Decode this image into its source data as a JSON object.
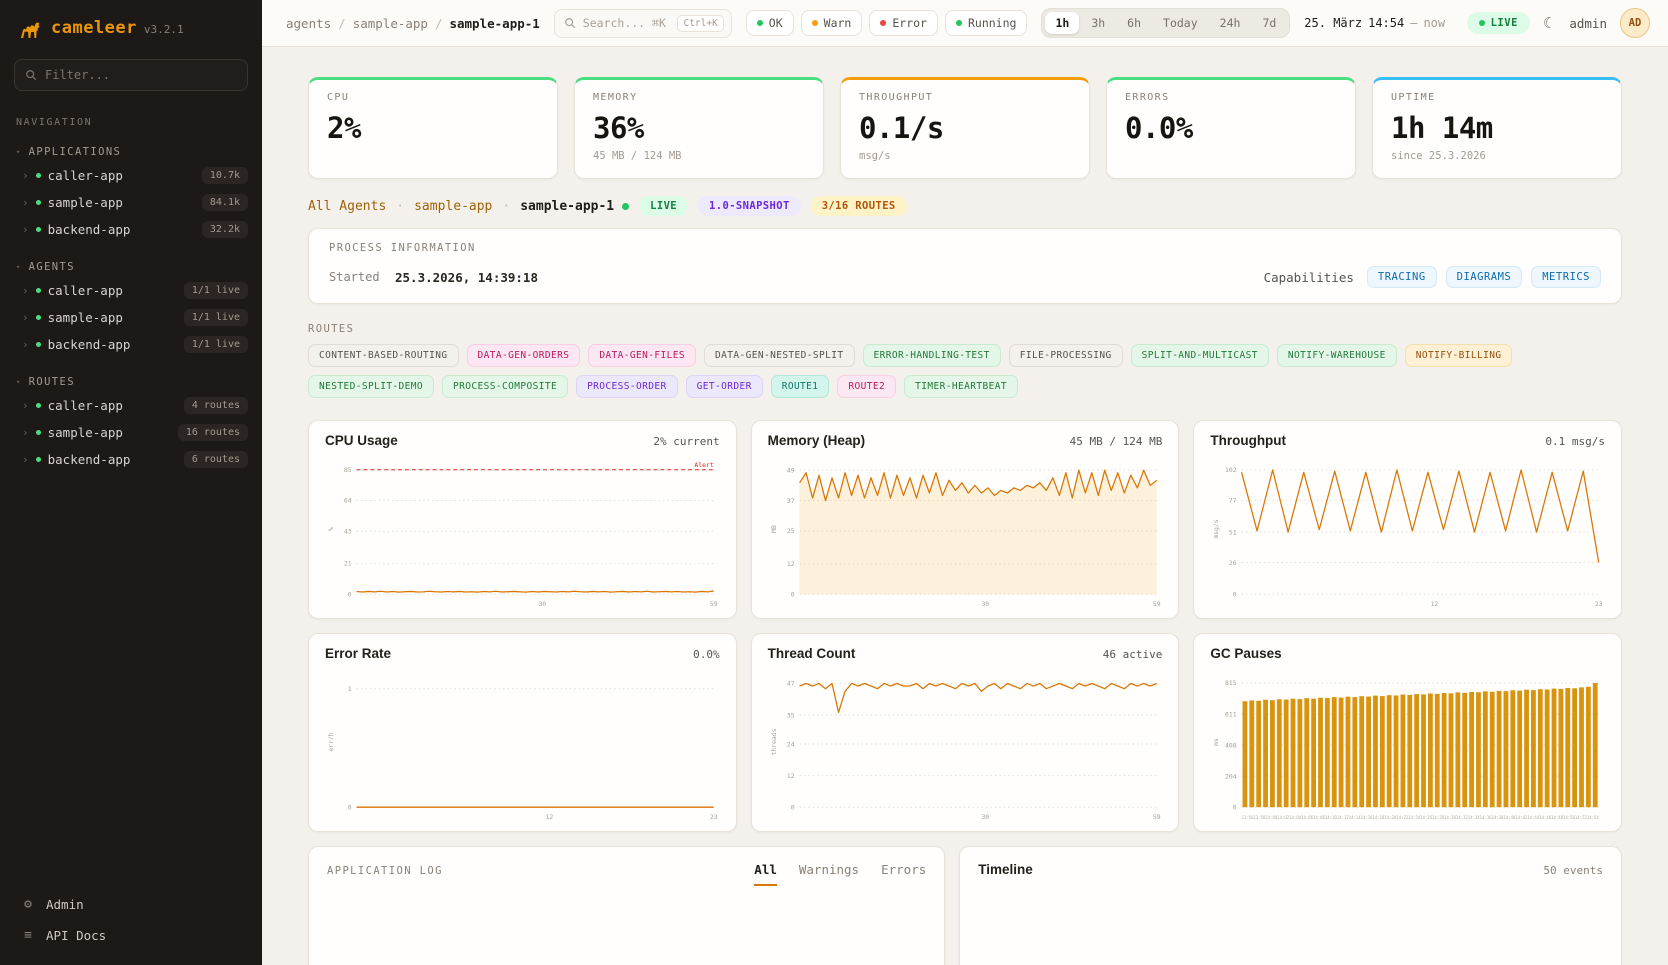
{
  "theme": {
    "accent": "#d97706",
    "bar": "#d9940f",
    "area_fill": "#f59e0b",
    "alert": "#dc2626",
    "grid": "#e3ded5",
    "tick": "#a8a097"
  },
  "app": {
    "name": "cameleer",
    "version": "v3.2.1"
  },
  "sidebar": {
    "filter_placeholder": "Filter...",
    "nav_label": "NAVIGATION",
    "sections": [
      {
        "title": "APPLICATIONS",
        "items": [
          {
            "name": "caller-app",
            "badge": "10.7k"
          },
          {
            "name": "sample-app",
            "badge": "84.1k"
          },
          {
            "name": "backend-app",
            "badge": "32.2k"
          }
        ]
      },
      {
        "title": "AGENTS",
        "items": [
          {
            "name": "caller-app",
            "badge": "1/1 live"
          },
          {
            "name": "sample-app",
            "badge": "1/1 live"
          },
          {
            "name": "backend-app",
            "badge": "1/1 live"
          }
        ]
      },
      {
        "title": "ROUTES",
        "items": [
          {
            "name": "caller-app",
            "badge": "4 routes"
          },
          {
            "name": "sample-app",
            "badge": "16 routes"
          },
          {
            "name": "backend-app",
            "badge": "6 routes"
          }
        ]
      }
    ],
    "footer": [
      {
        "label": "Admin"
      },
      {
        "label": "API Docs"
      }
    ]
  },
  "topbar": {
    "breadcrumb": [
      "agents",
      "sample-app",
      "sample-app-1"
    ],
    "breadcrumb_sep": "/",
    "search": {
      "placeholder": "Search... ⌘K",
      "kbd": "Ctrl+K"
    },
    "filters": [
      {
        "label": "OK",
        "color": "green"
      },
      {
        "label": "Warn",
        "color": "amber"
      },
      {
        "label": "Error",
        "color": "red"
      },
      {
        "label": "Running",
        "color": "green"
      }
    ],
    "ranges": [
      {
        "label": "1h",
        "active": true
      },
      {
        "label": "3h",
        "active": false
      },
      {
        "label": "6h",
        "active": false
      },
      {
        "label": "Today",
        "active": false
      },
      {
        "label": "24h",
        "active": false
      },
      {
        "label": "7d",
        "active": false
      }
    ],
    "date": {
      "day": "25. März",
      "time": "14:54",
      "sep": "—",
      "now": "now"
    },
    "live_label": "LIVE",
    "user": "admin",
    "avatar": "AD"
  },
  "stats": [
    {
      "label": "CPU",
      "value": "2%",
      "sub": "",
      "accent": "green"
    },
    {
      "label": "MEMORY",
      "value": "36%",
      "sub": "45 MB / 124 MB",
      "accent": "green"
    },
    {
      "label": "THROUGHPUT",
      "value": "0.1/s",
      "sub": "msg/s",
      "accent": "orange"
    },
    {
      "label": "ERRORS",
      "value": "0.0%",
      "sub": "",
      "accent": "green"
    },
    {
      "label": "UPTIME",
      "value": "1h 14m",
      "sub": "since 25.3.2026",
      "accent": "blue"
    }
  ],
  "agent_bar": {
    "links": [
      "All Agents",
      "sample-app"
    ],
    "sep": "·",
    "current": "sample-app-1",
    "badges": [
      {
        "label": "LIVE",
        "style": "live"
      },
      {
        "label": "1.0-SNAPSHOT",
        "style": "snapshot"
      },
      {
        "label": "3/16 ROUTES",
        "style": "routes"
      }
    ]
  },
  "process_info": {
    "title": "PROCESS INFORMATION",
    "started_label": "Started",
    "started_value": "25.3.2026, 14:39:18",
    "capabilities_label": "Capabilities",
    "capabilities": [
      "TRACING",
      "DIAGRAMS",
      "METRICS"
    ]
  },
  "routes_section": {
    "title": "ROUTES",
    "badges": [
      {
        "label": "CONTENT-BASED-ROUTING",
        "color": "neutral"
      },
      {
        "label": "DATA-GEN-ORDERS",
        "color": "pink"
      },
      {
        "label": "DATA-GEN-FILES",
        "color": "pink"
      },
      {
        "label": "DATA-GEN-NESTED-SPLIT",
        "color": "neutral"
      },
      {
        "label": "ERROR-HANDLING-TEST",
        "color": "green"
      },
      {
        "label": "FILE-PROCESSING",
        "color": "neutral"
      },
      {
        "label": "SPLIT-AND-MULTICAST",
        "color": "green"
      },
      {
        "label": "NOTIFY-WAREHOUSE",
        "color": "green"
      },
      {
        "label": "NOTIFY-BILLING",
        "color": "amber"
      },
      {
        "label": "NESTED-SPLIT-DEMO",
        "color": "green"
      },
      {
        "label": "PROCESS-COMPOSITE",
        "color": "green"
      },
      {
        "label": "PROCESS-ORDER",
        "color": "purple"
      },
      {
        "label": "GET-ORDER",
        "color": "purple"
      },
      {
        "label": "ROUTE1",
        "color": "teal"
      },
      {
        "label": "ROUTE2",
        "color": "pink"
      },
      {
        "label": "TIMER-HEARTBEAT",
        "color": "green"
      }
    ]
  },
  "charts": [
    {
      "title": "CPU Usage",
      "value_label": "2% current",
      "chart": {
        "type": "line",
        "y_label": "%",
        "ylim": [
          0,
          89
        ],
        "y_ticks": [
          85,
          64,
          43,
          21,
          0
        ],
        "x_ticks": [
          {
            "label": "30",
            "pos": 0.52
          },
          {
            "label": "59",
            "pos": 1
          }
        ],
        "alert": {
          "label": "Alert",
          "y": 85
        },
        "values": [
          1.8,
          1.5,
          1.9,
          1.6,
          2,
          1.5,
          1.8,
          1.4,
          1.7,
          1.9,
          1.5,
          1.6,
          2,
          1.7,
          1.5,
          1.8,
          1.6,
          1.9,
          1.5,
          1.7,
          1.4,
          1.8,
          1.6,
          2,
          1.5,
          1.7,
          1.9,
          1.6,
          1.4,
          1.8,
          1.5,
          1.9,
          1.7,
          1.5,
          1.8,
          1.6,
          2,
          1.7,
          1.5,
          1.9,
          1.6,
          1.8,
          1.4,
          1.7,
          1.9,
          1.5,
          1.8,
          1.6,
          2,
          1.5,
          1.7,
          1.9,
          1.6,
          1.8,
          1.5,
          1.7,
          1.4,
          1.9,
          1.6,
          2.2
        ]
      }
    },
    {
      "title": "Memory (Heap)",
      "value_label": "45 MB / 124 MB",
      "chart": {
        "type": "area",
        "y_label": "MB",
        "ylim": [
          0,
          51.5
        ],
        "y_ticks": [
          49,
          37,
          25,
          12,
          0
        ],
        "x_ticks": [
          {
            "label": "30",
            "pos": 0.52
          },
          {
            "label": "59",
            "pos": 1
          }
        ],
        "values": [
          44,
          48,
          38,
          47,
          37,
          46,
          38,
          48,
          39,
          47,
          38,
          46,
          39,
          48,
          38,
          47,
          39,
          46,
          38,
          47,
          40,
          48,
          39,
          45,
          41,
          44,
          40,
          43,
          40,
          42,
          39,
          41,
          40,
          42,
          41,
          43,
          42,
          44,
          41,
          46,
          39,
          48,
          38,
          49,
          40,
          48,
          39,
          49,
          41,
          48,
          40,
          47,
          42,
          49,
          43,
          45
        ]
      }
    },
    {
      "title": "Throughput",
      "value_label": "0.1 msg/s",
      "chart": {
        "type": "line",
        "y_label": "msg/s",
        "ylim": [
          0,
          107
        ],
        "y_ticks": [
          102,
          77,
          51,
          26,
          0
        ],
        "x_ticks": [
          {
            "label": "12",
            "pos": 0.54
          },
          {
            "label": "23",
            "pos": 1
          }
        ],
        "values": [
          100,
          52,
          102,
          51,
          100,
          53,
          101,
          52,
          100,
          51,
          102,
          52,
          100,
          53,
          101,
          51,
          100,
          52,
          102,
          51,
          100,
          52,
          101,
          26
        ]
      }
    },
    {
      "title": "Error Rate",
      "value_label": "0.0%",
      "chart": {
        "type": "line",
        "y_label": "err/h",
        "ylim": [
          0,
          1.1
        ],
        "y_ticks": [
          1,
          0
        ],
        "x_ticks": [
          {
            "label": "12",
            "pos": 0.54
          },
          {
            "label": "23",
            "pos": 1
          }
        ],
        "values": [
          0,
          0,
          0,
          0,
          0,
          0,
          0,
          0,
          0,
          0,
          0,
          0,
          0,
          0,
          0,
          0,
          0,
          0,
          0,
          0,
          0,
          0,
          0,
          0
        ]
      }
    },
    {
      "title": "Thread Count",
      "value_label": "46 active",
      "chart": {
        "type": "line",
        "y_label": "threads",
        "ylim": [
          0,
          49.5
        ],
        "y_ticks": [
          47,
          35,
          24,
          12,
          0
        ],
        "x_ticks": [
          {
            "label": "30",
            "pos": 0.52
          },
          {
            "label": "59",
            "pos": 1
          }
        ],
        "values": [
          46,
          47,
          46,
          47,
          45,
          47,
          36,
          44,
          47,
          46,
          47,
          46,
          45,
          47,
          46,
          47,
          46,
          46,
          47,
          45,
          47,
          46,
          47,
          46,
          45,
          47,
          46,
          47,
          44,
          46,
          47,
          45,
          47,
          46,
          45,
          47,
          46,
          47,
          45,
          46,
          47,
          46,
          45,
          47,
          46,
          47,
          46,
          45,
          47,
          46,
          45,
          47,
          46,
          47,
          46,
          47
        ]
      }
    },
    {
      "title": "GC Pauses",
      "value_label": "",
      "chart": {
        "type": "bar",
        "y_label": "ms",
        "ylim": [
          0,
          855
        ],
        "y_ticks": [
          815,
          611,
          408,
          204,
          0
        ],
        "x_dense": "13:5613:5814:0014:0214:0414:0614:0814:1014:1214:1414:1614:1814:2014:2214:2414:2614:2814:3014:3214:3414:3614:3814:4014:4214:4414:4614:4814:5014:5214:54",
        "values": [
          695,
          700,
          698,
          705,
          702,
          708,
          706,
          712,
          709,
          715,
          712,
          718,
          716,
          722,
          719,
          725,
          722,
          728,
          726,
          732,
          729,
          735,
          733,
          739,
          736,
          742,
          740,
          746,
          743,
          749,
          747,
          753,
          750,
          756,
          754,
          760,
          757,
          763,
          761,
          767,
          765,
          771,
          768,
          774,
          772,
          778,
          776,
          782,
          780,
          786,
          790,
          815
        ]
      }
    }
  ],
  "log": {
    "title": "APPLICATION LOG",
    "tabs": [
      {
        "label": "All",
        "active": true
      },
      {
        "label": "Warnings",
        "active": false
      },
      {
        "label": "Errors",
        "active": false
      }
    ]
  },
  "timeline": {
    "title": "Timeline",
    "events": "50 events"
  }
}
